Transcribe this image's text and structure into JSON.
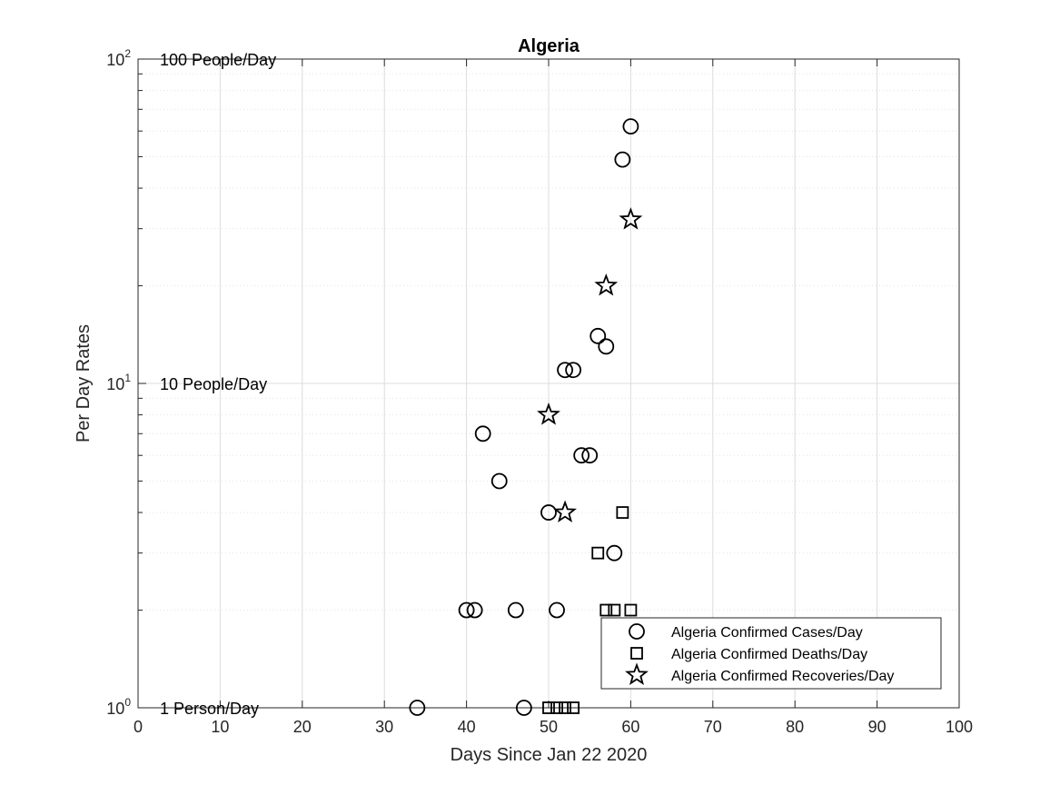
{
  "chart_data": {
    "type": "scatter",
    "title": "Algeria",
    "xlabel": "Days Since Jan 22 2020",
    "ylabel": "Per Day Rates",
    "xlim": [
      0,
      100
    ],
    "ylim": [
      1,
      100
    ],
    "yscale": "log",
    "grid": true,
    "x_ticks": [
      0,
      10,
      20,
      30,
      40,
      50,
      60,
      70,
      80,
      90,
      100
    ],
    "y_ticks": [
      {
        "base": "10",
        "exp": "0",
        "value": 1
      },
      {
        "base": "10",
        "exp": "1",
        "value": 10
      },
      {
        "base": "10",
        "exp": "2",
        "value": 100
      }
    ],
    "annotations": [
      {
        "text": "100 People/Day",
        "y": 100
      },
      {
        "text": "10 People/Day",
        "y": 10
      },
      {
        "text": "1 Person/Day",
        "y": 1
      }
    ],
    "legend_position": "bottom-right",
    "series": [
      {
        "name": "Algeria Confirmed Cases/Day",
        "marker": "circle",
        "x": [
          34,
          40,
          41,
          42,
          44,
          46,
          47,
          50,
          51,
          52,
          53,
          54,
          55,
          56,
          57,
          58,
          59,
          60
        ],
        "y": [
          1,
          2,
          2,
          7,
          5,
          2,
          1,
          4,
          2,
          11,
          11,
          6,
          6,
          14,
          13,
          3,
          49,
          62
        ]
      },
      {
        "name": "Algeria Confirmed Deaths/Day",
        "marker": "square",
        "x": [
          50,
          51,
          52,
          53,
          56,
          57,
          58,
          59,
          60
        ],
        "y": [
          1,
          1,
          1,
          1,
          3,
          2,
          2,
          4,
          2
        ]
      },
      {
        "name": "Algeria Confirmed Recoveries/Day",
        "marker": "star",
        "x": [
          50,
          52,
          57,
          60
        ],
        "y": [
          8,
          4,
          20,
          32
        ]
      }
    ]
  }
}
